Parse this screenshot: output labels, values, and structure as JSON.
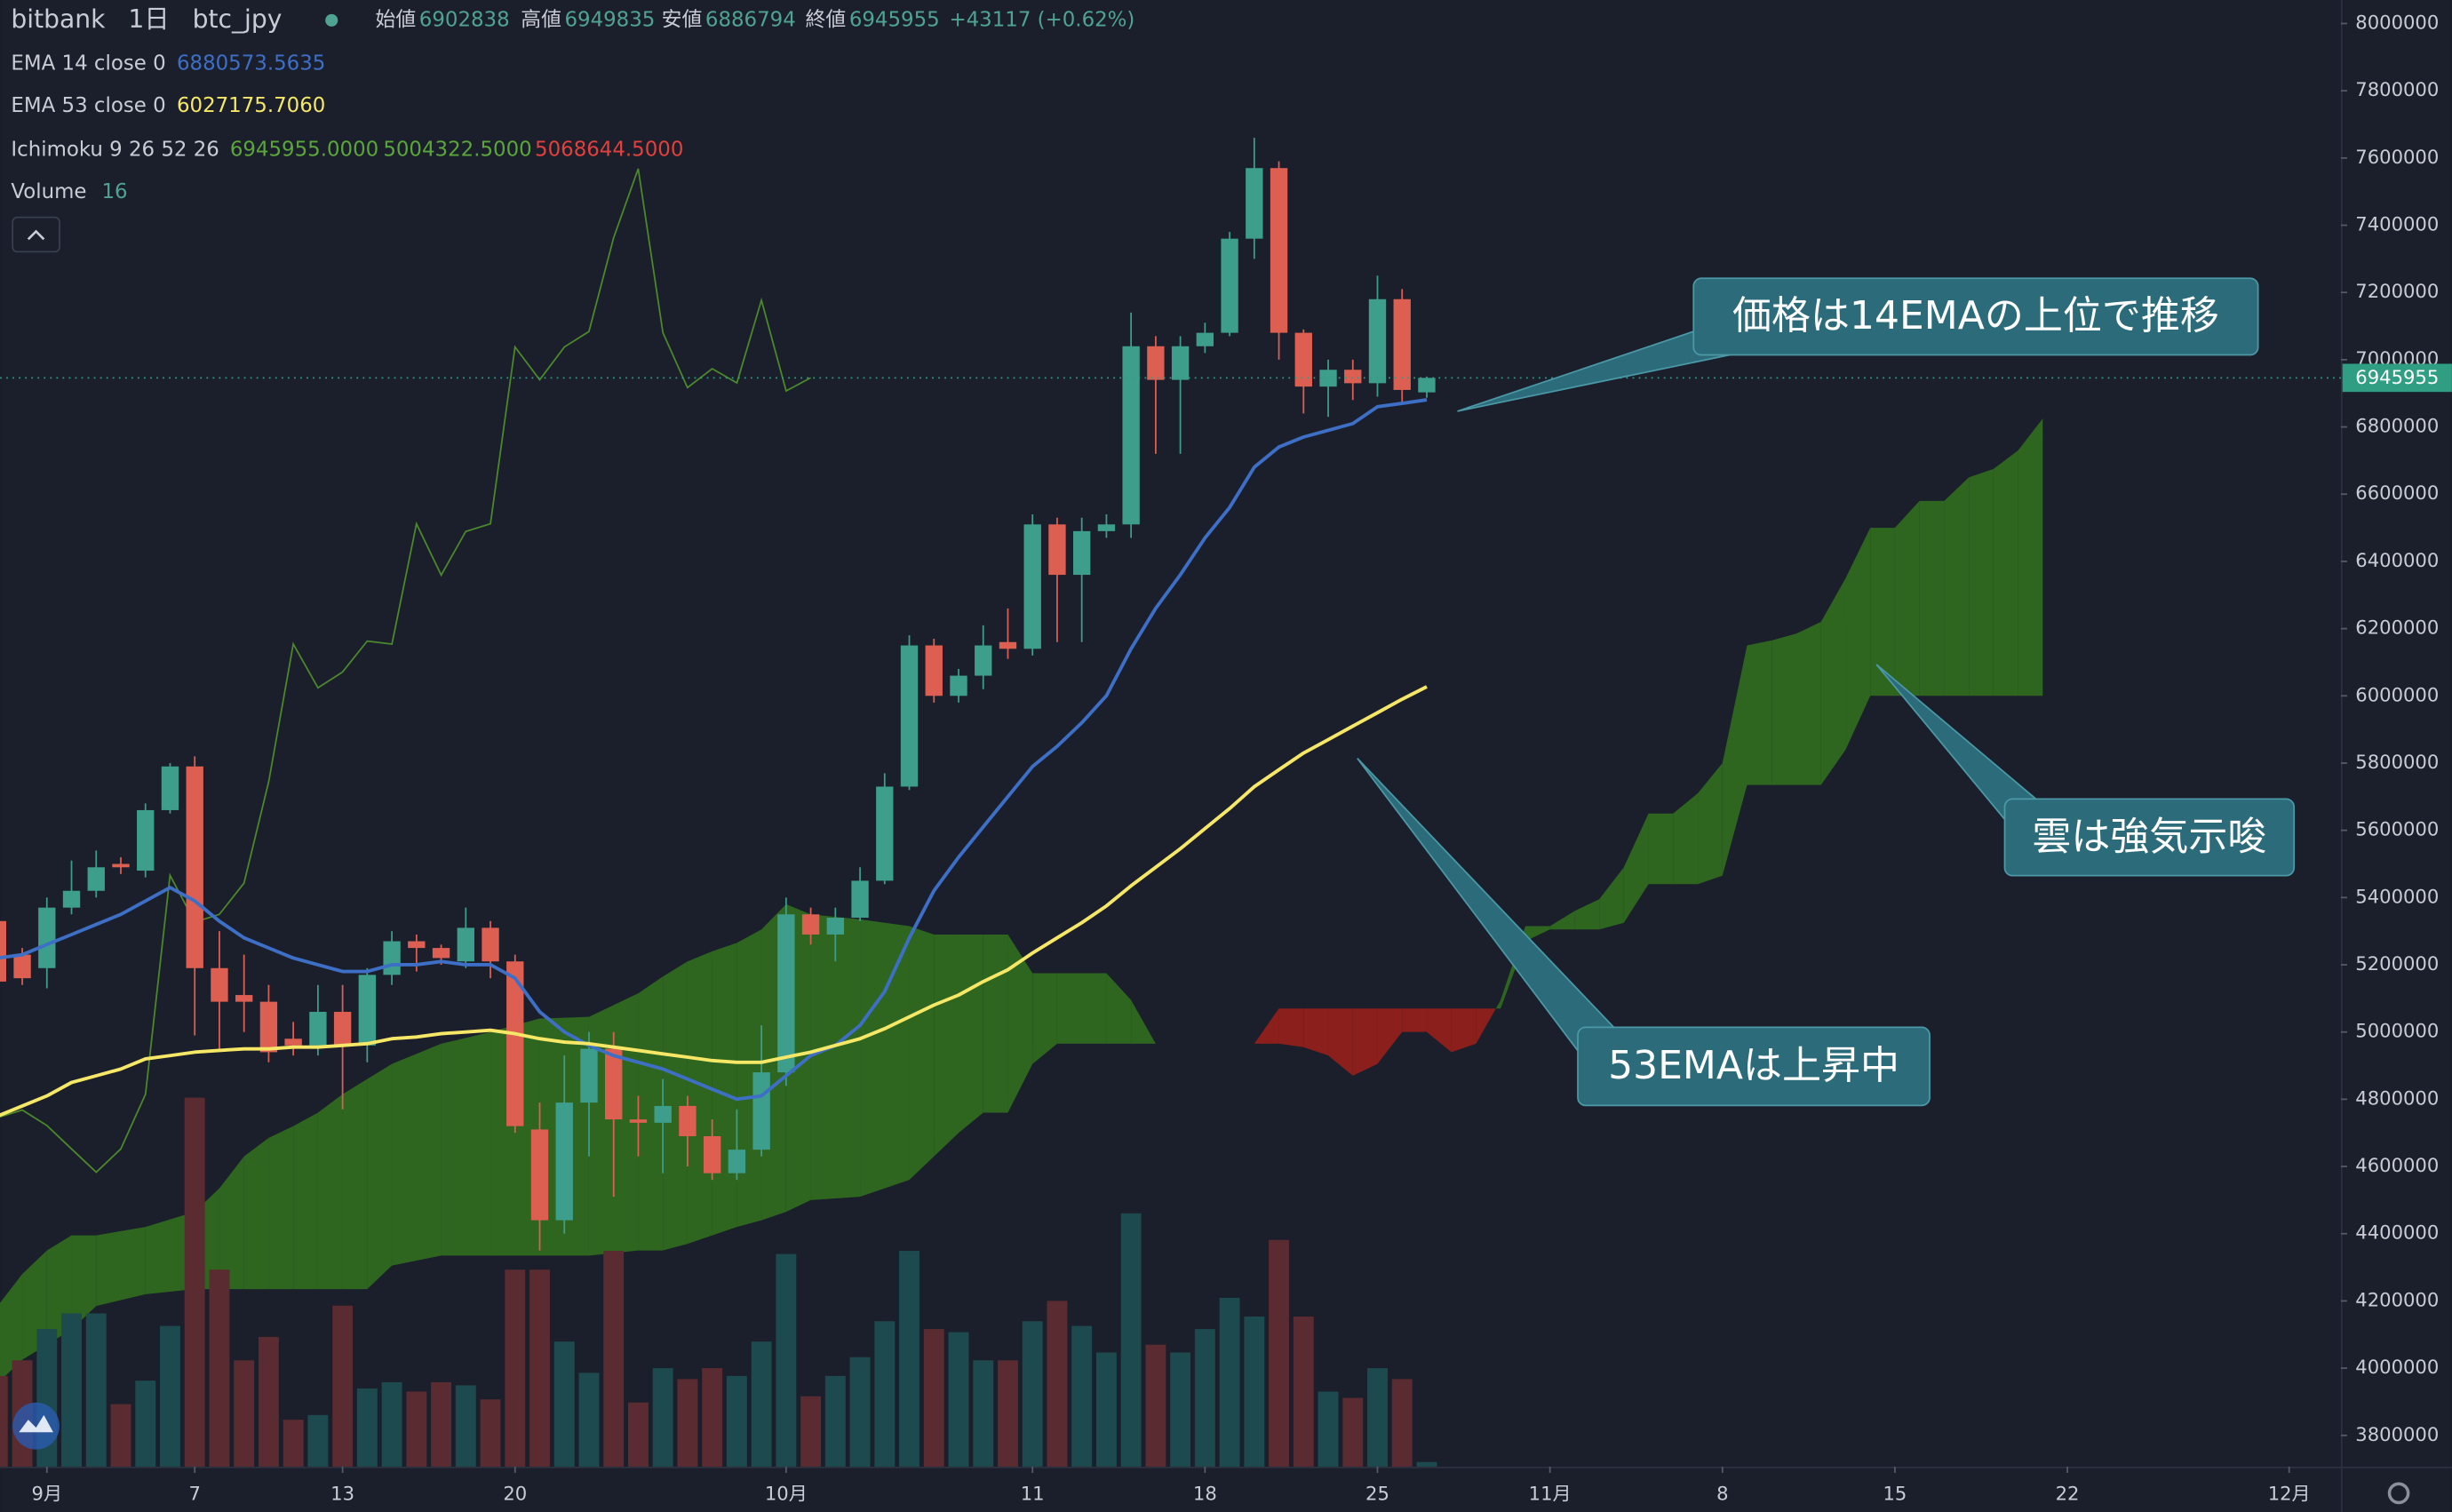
{
  "chart_data": {
    "type": "candlestick",
    "header": {
      "exchange": "bitbank",
      "interval": "1日",
      "symbol": "btc_jpy",
      "open_label": "始値",
      "high_label": "高値",
      "low_label": "安値",
      "close_label": "終値",
      "change": "+43117 (+0.62%)",
      "color": "#4fa391"
    },
    "x": [
      -2,
      -1,
      0,
      1,
      2,
      3,
      4,
      5,
      6,
      7,
      8,
      9,
      10,
      11,
      12,
      13,
      14,
      15,
      16,
      17,
      18,
      19,
      20,
      21,
      22,
      23,
      24,
      25,
      26,
      27,
      28,
      29,
      30,
      31,
      32,
      33,
      34,
      35,
      36,
      37,
      38,
      39,
      40,
      41,
      42,
      43,
      44,
      45,
      46,
      47,
      48,
      49,
      50,
      51,
      52,
      53,
      54,
      55,
      56
    ],
    "open": [
      5330000,
      5230000,
      5190000,
      5370000,
      5420000,
      5500000,
      5480000,
      5660000,
      5790000,
      5190000,
      5110000,
      5090000,
      4980000,
      4960000,
      5060000,
      4960000,
      5170000,
      5270000,
      5250000,
      5210000,
      5310000,
      5210000,
      4710000,
      4440000,
      4790000,
      4950000,
      4740000,
      4730000,
      4780000,
      4690000,
      4580000,
      4650000,
      4880000,
      5350000,
      5290000,
      5340000,
      5450000,
      5730000,
      6150000,
      6000000,
      6060000,
      6160000,
      6140000,
      6510000,
      6360000,
      6490000,
      6510000,
      7040000,
      6940000,
      7040000,
      7080000,
      7360000,
      7570000,
      7080000,
      6920000,
      6970000,
      6930000,
      7180000,
      6902838
    ],
    "high": [
      5350000,
      5250000,
      5400000,
      5510000,
      5540000,
      5520000,
      5680000,
      5800000,
      5820000,
      5300000,
      5230000,
      5140000,
      5030000,
      5140000,
      5140000,
      5190000,
      5300000,
      5290000,
      5260000,
      5370000,
      5330000,
      5230000,
      4790000,
      4930000,
      5000000,
      5000000,
      4810000,
      4860000,
      4810000,
      4740000,
      4770000,
      5020000,
      5400000,
      5370000,
      5370000,
      5490000,
      5770000,
      6180000,
      6170000,
      6080000,
      6210000,
      6260000,
      6540000,
      6530000,
      6530000,
      6540000,
      7140000,
      7070000,
      7070000,
      7110000,
      7380000,
      7660000,
      7590000,
      7090000,
      7000000,
      7000000,
      7250000,
      7210000,
      6949835
    ],
    "low": [
      5140000,
      5140000,
      5130000,
      5350000,
      5400000,
      5470000,
      5460000,
      5650000,
      4990000,
      4950000,
      5000000,
      4910000,
      4930000,
      4930000,
      4770000,
      4910000,
      5140000,
      5180000,
      5200000,
      5190000,
      5160000,
      4700000,
      4350000,
      4400000,
      4630000,
      4510000,
      4630000,
      4580000,
      4600000,
      4560000,
      4560000,
      4630000,
      4840000,
      5260000,
      5210000,
      5330000,
      5440000,
      5720000,
      5980000,
      5980000,
      6020000,
      6110000,
      6120000,
      6160000,
      6160000,
      6470000,
      6470000,
      6720000,
      6720000,
      7020000,
      7070000,
      7300000,
      7000000,
      6840000,
      6830000,
      6880000,
      6890000,
      6870000,
      6886794
    ],
    "close": [
      5150000,
      5160000,
      5370000,
      5420000,
      5490000,
      5490000,
      5660000,
      5790000,
      5190000,
      5090000,
      5090000,
      4940000,
      4960000,
      5060000,
      4960000,
      5170000,
      5270000,
      5250000,
      5220000,
      5310000,
      5210000,
      4720000,
      4440000,
      4790000,
      4950000,
      4740000,
      4730000,
      4780000,
      4690000,
      4580000,
      4650000,
      4880000,
      5350000,
      5290000,
      5340000,
      5450000,
      5730000,
      6150000,
      6000000,
      6060000,
      6150000,
      6140000,
      6510000,
      6360000,
      6490000,
      6510000,
      7040000,
      6940000,
      7040000,
      7080000,
      7360000,
      7570000,
      7080000,
      6920000,
      6970000,
      6930000,
      7180000,
      6910000,
      6945955
    ],
    "up_color": "#3d9e8c",
    "down_color": "#dd5f52",
    "volume": {
      "name": "Volume",
      "length": 16,
      "vlim": [
        0,
        250
      ],
      "up_color": "#1d4a4e",
      "down_color": "#5a2b30",
      "values": [
        58,
        68,
        88,
        98,
        98,
        40,
        55,
        90,
        236,
        126,
        68,
        83,
        30,
        33,
        103,
        50,
        54,
        48,
        54,
        52,
        43,
        126,
        126,
        80,
        60,
        138,
        41,
        63,
        56,
        63,
        58,
        80,
        136,
        45,
        58,
        70,
        93,
        138,
        88,
        86,
        68,
        68,
        93,
        106,
        90,
        73,
        162,
        78,
        73,
        88,
        108,
        96,
        145,
        96,
        48,
        44,
        63,
        56,
        3
      ]
    },
    "series": [
      {
        "name": "EMA 14 close 0",
        "color": "#3d6fc6",
        "values": [
          5220000,
          5230000,
          5260000,
          5290000,
          5320000,
          5350000,
          5390000,
          5430000,
          5390000,
          5330000,
          5280000,
          5250000,
          5220000,
          5200000,
          5180000,
          5180000,
          5200000,
          5200000,
          5210000,
          5200000,
          5200000,
          5160000,
          5060000,
          5000000,
          4960000,
          4930000,
          4910000,
          4890000,
          4860000,
          4830000,
          4800000,
          4810000,
          4870000,
          4930000,
          4960000,
          5020000,
          5120000,
          5280000,
          5420000,
          5520000,
          5610000,
          5700000,
          5790000,
          5850000,
          5920000,
          6000000,
          6140000,
          6260000,
          6360000,
          6470000,
          6560000,
          6680000,
          6740000,
          6770000,
          6790000,
          6810000,
          6860000,
          6870000,
          6880573.5635
        ]
      },
      {
        "name": "EMA 53 close 0",
        "color": "#f6e866",
        "last_label": "6027175.7060",
        "values": [
          4750000,
          4780000,
          4810000,
          4850000,
          4870000,
          4890000,
          4920000,
          4930000,
          4940000,
          4945000,
          4950000,
          4950000,
          4955000,
          4955000,
          4960000,
          4965000,
          4980000,
          4985000,
          4995000,
          5000000,
          5005000,
          4995000,
          4980000,
          4970000,
          4965000,
          4955000,
          4945000,
          4935000,
          4925000,
          4915000,
          4910000,
          4910000,
          4925000,
          4940000,
          4960000,
          4980000,
          5010000,
          5045000,
          5080000,
          5110000,
          5150000,
          5185000,
          5235000,
          5280000,
          5325000,
          5375000,
          5435000,
          5490000,
          5545000,
          5605000,
          5665000,
          5730000,
          5780000,
          5830000,
          5870000,
          5910000,
          5950000,
          5990000,
          6027175.706
        ]
      }
    ],
    "ichimoku": {
      "name": "Ichimoku 9 26 52 26",
      "printed": [
        "6945955.0000",
        "5004322.5000",
        "5068644.5000"
      ],
      "printed_colors": [
        "#5aa63b",
        "#5aa63b",
        "#e2403c"
      ],
      "lagging": {
        "color": "#4b8a2b",
        "x": [
          -2,
          -1,
          0,
          1,
          2,
          3,
          4,
          5,
          6,
          7,
          8,
          9,
          10,
          11,
          12,
          13,
          14,
          15,
          16,
          17,
          18,
          19,
          20,
          21,
          22,
          23,
          24,
          25,
          26,
          27,
          28,
          29,
          30,
          31
        ],
        "values": [
          4745000,
          4768000,
          4722000,
          4652000,
          4583000,
          4652000,
          4815000,
          5466000,
          5327000,
          5350000,
          5443000,
          5745000,
          6154000,
          6024000,
          6071000,
          6163000,
          6154000,
          6512000,
          6359000,
          6489000,
          6512000,
          7038000,
          6940000,
          7038000,
          7084000,
          7363000,
          7568000,
          7080000,
          6917000,
          6973000,
          6931000,
          7177000,
          6907000,
          6946000
        ]
      },
      "cloud": {
        "up_color": "#2e6620",
        "down_color": "#8a1f1c",
        "x": [
          -2,
          -1,
          0,
          1,
          2,
          4,
          6,
          7,
          8,
          9,
          10,
          11,
          12,
          13,
          14,
          16,
          18,
          20,
          22,
          24,
          25,
          26,
          27,
          28,
          29,
          30,
          31,
          33,
          35,
          36,
          37,
          38,
          39,
          40,
          41,
          43,
          44,
          45,
          49,
          50,
          51,
          52,
          53,
          54,
          55,
          56,
          57,
          58,
          59,
          60,
          61,
          62,
          63,
          64,
          65,
          66,
          67,
          68,
          69,
          70,
          71,
          72,
          73,
          74,
          75,
          76,
          77,
          78,
          79,
          80,
          81
        ],
        "span_a": [
          4185000,
          4280000,
          4350000,
          4395000,
          4395000,
          4420000,
          4465000,
          4535000,
          4630000,
          4685000,
          4720000,
          4760000,
          4815000,
          4860000,
          4905000,
          4965000,
          5000000,
          5040000,
          5045000,
          5115000,
          5165000,
          5210000,
          5240000,
          5265000,
          5305000,
          5380000,
          5350000,
          5335000,
          5315000,
          5290000,
          5290000,
          5290000,
          5290000,
          5175000,
          5175000,
          5175000,
          5095000,
          4965000,
          4965000,
          4965000,
          4955000,
          4930000,
          4870000,
          4905000,
          5000000,
          5000000,
          4940000,
          4965000,
          5095000,
          5315000,
          5315000,
          5360000,
          5395000,
          5490000,
          5650000,
          5650000,
          5710000,
          5800000,
          6150000,
          6165000,
          6185000,
          6220000,
          6350000,
          6500000,
          6500000,
          6580000,
          6580000,
          6650000,
          6675000,
          6730000,
          6825000
        ],
        "span_b": [
          3955000,
          4025000,
          4070000,
          4115000,
          4185000,
          4220000,
          4235000,
          4235000,
          4235000,
          4235000,
          4235000,
          4235000,
          4235000,
          4235000,
          4305000,
          4335000,
          4335000,
          4335000,
          4335000,
          4350000,
          4350000,
          4370000,
          4395000,
          4420000,
          4440000,
          4465000,
          4500000,
          4510000,
          4560000,
          4630000,
          4700000,
          4760000,
          4760000,
          4905000,
          4965000,
          4965000,
          4965000,
          4965000,
          4965000,
          5070000,
          5070000,
          5070000,
          5070000,
          5070000,
          5070000,
          5070000,
          5070000,
          5070000,
          5070000,
          5270000,
          5305000,
          5305000,
          5305000,
          5325000,
          5440000,
          5440000,
          5440000,
          5465000,
          5735000,
          5735000,
          5735000,
          5735000,
          5840000,
          6000000,
          6000000,
          6000000,
          6000000,
          6000000,
          6000000,
          6000000,
          6000000
        ]
      }
    },
    "price_line_color": "#2f9e83",
    "ylim": [
      3707000,
      8070000
    ],
    "yticks": [
      3800000,
      4000000,
      4200000,
      4400000,
      4600000,
      4800000,
      5000000,
      5200000,
      5400000,
      5600000,
      5800000,
      6000000,
      6200000,
      6400000,
      6600000,
      6800000,
      7000000,
      7200000,
      7400000,
      7600000,
      7800000,
      8000000
    ],
    "xlim": [
      -1.9,
      93.1
    ],
    "xticks": [
      {
        "value": 0,
        "label": "9月"
      },
      {
        "value": 6,
        "label": "7"
      },
      {
        "value": 12,
        "label": "13"
      },
      {
        "value": 19,
        "label": "20"
      },
      {
        "value": 30,
        "label": "10月"
      },
      {
        "value": 40,
        "label": "11"
      },
      {
        "value": 47,
        "label": "18"
      },
      {
        "value": 54,
        "label": "25"
      },
      {
        "value": 61,
        "label": "11月"
      },
      {
        "value": 68,
        "label": "8"
      },
      {
        "value": 75,
        "label": "15"
      },
      {
        "value": 82,
        "label": "22"
      },
      {
        "value": 91,
        "label": "12月"
      }
    ],
    "annotations": [
      {
        "text": "価格は14EMAの上位で推移"
      },
      {
        "text": "雲は強気示唆"
      },
      {
        "text": "53EMAは上昇中"
      }
    ]
  }
}
